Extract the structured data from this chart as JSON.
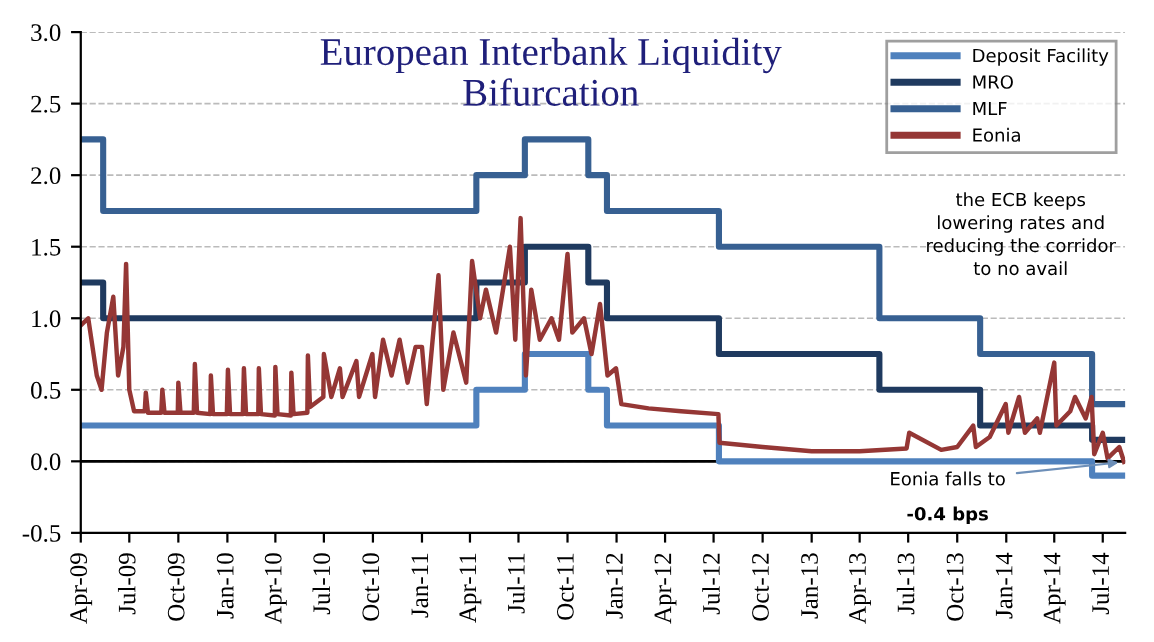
{
  "chart_data": {
    "type": "line",
    "title": "European Interbank Liquidity\nBifurcation",
    "xlim": [
      "2009-04-01",
      "2014-08-12"
    ],
    "xticks": [
      {
        "value": "2009-04-01",
        "label": "Apr-09"
      },
      {
        "value": "2009-07-01",
        "label": "Jul-09"
      },
      {
        "value": "2009-10-01",
        "label": "Oct-09"
      },
      {
        "value": "2010-01-01",
        "label": "Jan-10"
      },
      {
        "value": "2010-04-01",
        "label": "Apr-10"
      },
      {
        "value": "2010-07-01",
        "label": "Jul-10"
      },
      {
        "value": "2010-10-01",
        "label": "Oct-10"
      },
      {
        "value": "2011-01-01",
        "label": "Jan-11"
      },
      {
        "value": "2011-04-01",
        "label": "Apr-11"
      },
      {
        "value": "2011-07-01",
        "label": "Jul-11"
      },
      {
        "value": "2011-10-01",
        "label": "Oct-11"
      },
      {
        "value": "2012-01-01",
        "label": "Jan-12"
      },
      {
        "value": "2012-04-01",
        "label": "Apr-12"
      },
      {
        "value": "2012-07-01",
        "label": "Jul-12"
      },
      {
        "value": "2012-10-01",
        "label": "Oct-12"
      },
      {
        "value": "2013-01-01",
        "label": "Jan-13"
      },
      {
        "value": "2013-04-01",
        "label": "Apr-13"
      },
      {
        "value": "2013-07-01",
        "label": "Jul-13"
      },
      {
        "value": "2013-10-01",
        "label": "Oct-13"
      },
      {
        "value": "2014-01-01",
        "label": "Jan-14"
      },
      {
        "value": "2014-04-01",
        "label": "Apr-14"
      },
      {
        "value": "2014-07-01",
        "label": "Jul-14"
      }
    ],
    "ylim": [
      -0.5,
      3.0
    ],
    "yticks": [
      {
        "value": -0.5,
        "label": "-0.5"
      },
      {
        "value": 0,
        "label": "0.0"
      },
      {
        "value": 0.5,
        "label": "0.5"
      },
      {
        "value": 1,
        "label": "1.0"
      },
      {
        "value": 1.5,
        "label": "1.5"
      },
      {
        "value": 2,
        "label": "2.0"
      },
      {
        "value": 2.5,
        "label": "2.5"
      },
      {
        "value": 3,
        "label": "3.0"
      }
    ],
    "grid": "y",
    "legend": "top right",
    "ref_lines": [
      {
        "axis": "y",
        "value": 0,
        "color": "#000000"
      }
    ],
    "series": [
      {
        "name": "Deposit Facility",
        "type": "step",
        "color": "#4f81bd",
        "x": [
          "2009-04-01",
          "2009-05-13",
          "2011-04-13",
          "2011-07-13",
          "2011-11-09",
          "2011-12-14",
          "2012-07-11",
          "2014-06-11",
          "2014-08-12"
        ],
        "values": [
          0.25,
          0.25,
          0.5,
          0.75,
          0.5,
          0.25,
          0.0,
          -0.1,
          -0.1
        ]
      },
      {
        "name": "MRO",
        "type": "step",
        "color": "#1f3a5f",
        "x": [
          "2009-04-01",
          "2009-05-13",
          "2011-04-13",
          "2011-07-13",
          "2011-11-09",
          "2011-12-14",
          "2012-07-11",
          "2013-05-08",
          "2013-11-13",
          "2014-06-11",
          "2014-08-12"
        ],
        "values": [
          1.25,
          1.0,
          1.25,
          1.5,
          1.25,
          1.0,
          0.75,
          0.5,
          0.25,
          0.15,
          0.15
        ]
      },
      {
        "name": "MLF",
        "type": "step",
        "color": "#376092",
        "x": [
          "2009-04-01",
          "2009-05-13",
          "2011-04-13",
          "2011-07-13",
          "2011-11-09",
          "2011-12-14",
          "2012-07-11",
          "2013-05-08",
          "2013-11-13",
          "2014-06-11",
          "2014-08-12"
        ],
        "values": [
          2.25,
          1.75,
          2.0,
          2.25,
          2.0,
          1.75,
          1.5,
          1.0,
          0.75,
          0.4,
          0.4
        ]
      },
      {
        "name": "Eonia",
        "color": "#953735",
        "x": [
          "2009-04-01",
          "2009-04-15",
          "2009-05-01",
          "2009-05-10",
          "2009-05-20",
          "2009-06-01",
          "2009-06-10",
          "2009-06-20",
          "2009-06-25",
          "2009-07-01",
          "2009-07-10",
          "2009-07-30",
          "2009-08-01",
          "2009-08-05",
          "2009-08-30",
          "2009-09-01",
          "2009-09-05",
          "2009-09-30",
          "2009-10-01",
          "2009-10-05",
          "2009-10-30",
          "2009-11-01",
          "2009-11-05",
          "2009-11-30",
          "2009-12-01",
          "2009-12-05",
          "2009-12-31",
          "2010-01-02",
          "2010-01-06",
          "2010-01-30",
          "2010-02-01",
          "2010-02-05",
          "2010-02-28",
          "2010-03-01",
          "2010-03-05",
          "2010-03-31",
          "2010-04-01",
          "2010-04-05",
          "2010-04-30",
          "2010-05-01",
          "2010-05-05",
          "2010-05-31",
          "2010-06-01",
          "2010-06-05",
          "2010-06-30",
          "2010-07-01",
          "2010-07-15",
          "2010-07-31",
          "2010-08-05",
          "2010-08-31",
          "2010-09-05",
          "2010-09-30",
          "2010-10-05",
          "2010-10-20",
          "2010-11-05",
          "2010-11-20",
          "2010-12-05",
          "2010-12-20",
          "2011-01-01",
          "2011-01-10",
          "2011-02-01",
          "2011-02-10",
          "2011-03-01",
          "2011-03-25",
          "2011-04-05",
          "2011-04-20",
          "2011-05-01",
          "2011-05-20",
          "2011-06-15",
          "2011-06-25",
          "2011-07-05",
          "2011-07-15",
          "2011-07-25",
          "2011-08-10",
          "2011-09-01",
          "2011-09-15",
          "2011-10-01",
          "2011-10-10",
          "2011-11-01",
          "2011-11-15",
          "2011-12-01",
          "2011-12-15",
          "2011-12-31",
          "2012-01-10",
          "2012-03-01",
          "2012-05-01",
          "2012-07-10",
          "2012-07-12",
          "2012-10-01",
          "2013-01-01",
          "2013-04-01",
          "2013-06-28",
          "2013-07-03",
          "2013-09-01",
          "2013-10-01",
          "2013-10-31",
          "2013-11-05",
          "2013-12-01",
          "2013-12-31",
          "2014-01-05",
          "2014-01-25",
          "2014-02-05",
          "2014-02-28",
          "2014-03-05",
          "2014-04-01",
          "2014-04-05",
          "2014-05-01",
          "2014-05-10",
          "2014-05-30",
          "2014-06-10",
          "2014-06-15",
          "2014-07-01",
          "2014-07-10",
          "2014-08-01",
          "2014-08-10"
        ],
        "values": [
          0.95,
          1.0,
          0.6,
          0.5,
          0.9,
          1.15,
          0.6,
          0.8,
          1.38,
          0.5,
          0.35,
          0.35,
          0.48,
          0.34,
          0.34,
          0.5,
          0.34,
          0.34,
          0.55,
          0.34,
          0.34,
          0.68,
          0.34,
          0.33,
          0.6,
          0.33,
          0.33,
          0.64,
          0.33,
          0.33,
          0.65,
          0.33,
          0.33,
          0.65,
          0.33,
          0.32,
          0.66,
          0.33,
          0.32,
          0.62,
          0.33,
          0.34,
          0.74,
          0.38,
          0.45,
          0.75,
          0.45,
          0.65,
          0.45,
          0.7,
          0.45,
          0.75,
          0.45,
          0.85,
          0.6,
          0.85,
          0.55,
          0.8,
          0.8,
          0.4,
          1.3,
          0.5,
          0.9,
          0.55,
          1.4,
          1.0,
          1.2,
          0.9,
          1.5,
          0.85,
          1.7,
          0.6,
          1.2,
          0.85,
          1.0,
          0.85,
          1.45,
          0.9,
          1.0,
          0.75,
          1.1,
          0.6,
          0.65,
          0.4,
          0.37,
          0.35,
          0.33,
          0.13,
          0.1,
          0.07,
          0.07,
          0.09,
          0.2,
          0.08,
          0.1,
          0.25,
          0.1,
          0.17,
          0.4,
          0.2,
          0.45,
          0.2,
          0.3,
          0.2,
          0.69,
          0.25,
          0.35,
          0.45,
          0.3,
          0.45,
          0.05,
          0.2,
          0.02,
          0.1,
          -0.004
        ]
      }
    ],
    "annotations": [
      {
        "text": "Eonia falls to",
        "x": "2014-08-10",
        "y": -0.004
      },
      "-0.4 bps",
      "the ECB keeps\nlowering rates and\nreducing the corridor\nto no avail"
    ]
  }
}
